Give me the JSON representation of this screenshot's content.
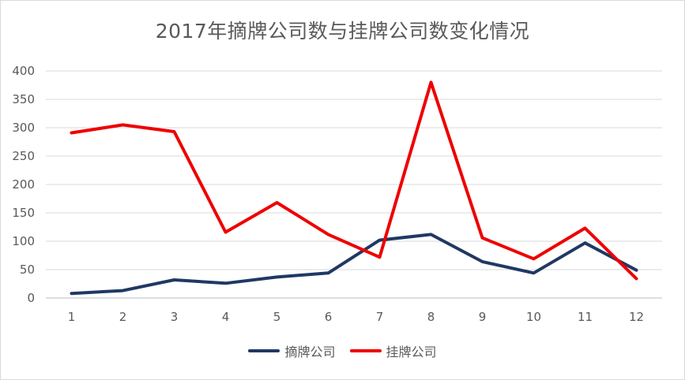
{
  "chart_data": {
    "type": "line",
    "title": "2017年摘牌公司数与挂牌公司数变化情况",
    "xlabel": "",
    "ylabel": "",
    "categories": [
      "1",
      "2",
      "3",
      "4",
      "5",
      "6",
      "7",
      "8",
      "9",
      "10",
      "11",
      "12"
    ],
    "ylim": [
      0,
      400
    ],
    "yticks": [
      "0",
      "50",
      "100",
      "150",
      "200",
      "250",
      "300",
      "350",
      "400"
    ],
    "grid": true,
    "legend_position": "bottom",
    "series": [
      {
        "name": "摘牌公司",
        "color": "#203864",
        "values": [
          8,
          13,
          32,
          26,
          37,
          44,
          102,
          112,
          64,
          44,
          97,
          49
        ]
      },
      {
        "name": "挂牌公司",
        "color": "#ee0000",
        "values": [
          291,
          305,
          293,
          116,
          168,
          112,
          72,
          380,
          106,
          69,
          123,
          34
        ]
      }
    ]
  }
}
